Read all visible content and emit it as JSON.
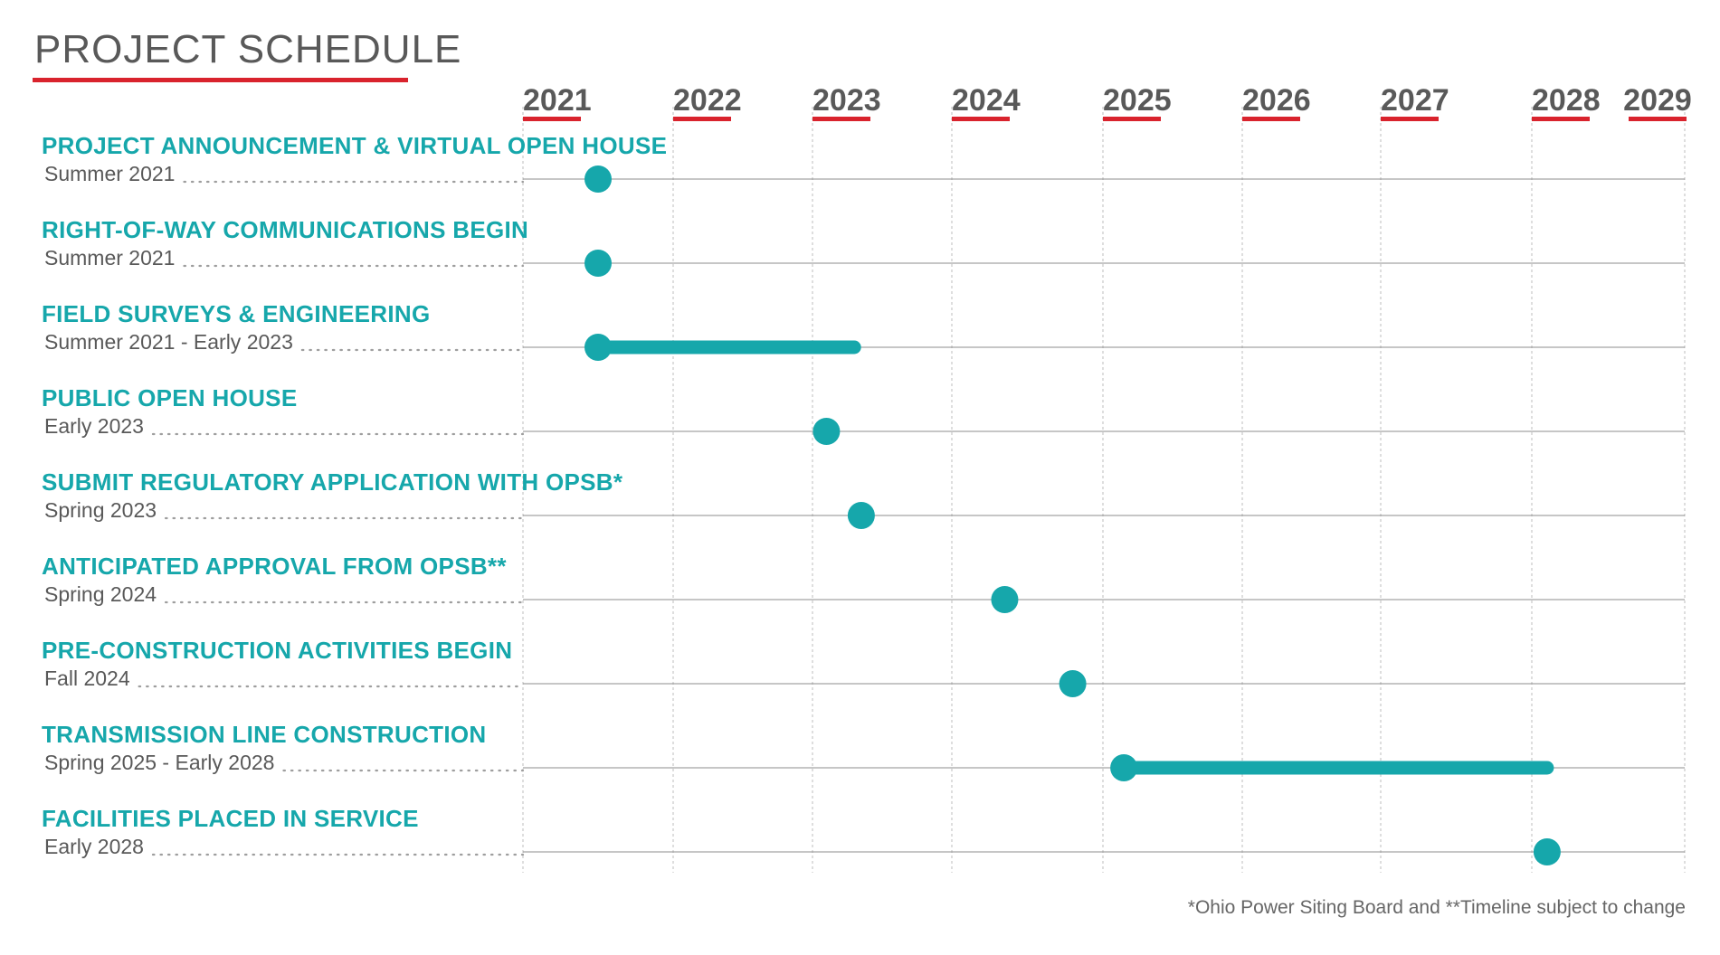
{
  "title": "PROJECT SCHEDULE",
  "footnote": "*Ohio Power Siting Board and  **Timeline subject to change",
  "colors": {
    "accent_red": "#d9232d",
    "teal": "#16a7ab",
    "text_gray": "#595959"
  },
  "chart_data": {
    "type": "gantt",
    "title": "PROJECT SCHEDULE",
    "x_axis": {
      "ticks": [
        "2021",
        "2022",
        "2023",
        "2024",
        "2025",
        "2026",
        "2027",
        "2028",
        "2029"
      ],
      "range": [
        2021,
        2029
      ]
    },
    "tasks": [
      {
        "name": "PROJECT ANNOUNCEMENT & VIRTUAL OPEN HOUSE",
        "date_label": "Summer 2021",
        "start": 2021.5,
        "end": 2021.5
      },
      {
        "name": "RIGHT-OF-WAY COMMUNICATIONS BEGIN",
        "date_label": "Summer 2021",
        "start": 2021.5,
        "end": 2021.5
      },
      {
        "name": "FIELD SURVEYS & ENGINEERING",
        "date_label": "Summer 2021 - Early 2023",
        "start": 2021.5,
        "end": 2023.3
      },
      {
        "name": "PUBLIC OPEN HOUSE",
        "date_label": "Early 2023",
        "start": 2023.1,
        "end": 2023.1
      },
      {
        "name": "SUBMIT REGULATORY APPLICATION WITH OPSB*",
        "date_label": "Spring 2023",
        "start": 2023.35,
        "end": 2023.35
      },
      {
        "name": "ANTICIPATED APPROVAL FROM OPSB**",
        "date_label": "Spring 2024",
        "start": 2024.35,
        "end": 2024.35
      },
      {
        "name": "PRE-CONSTRUCTION ACTIVITIES BEGIN",
        "date_label": "Fall 2024",
        "start": 2024.8,
        "end": 2024.8
      },
      {
        "name": "TRANSMISSION LINE CONSTRUCTION",
        "date_label": "Spring 2025 - Early 2028",
        "start": 2025.15,
        "end": 2028.1
      },
      {
        "name": "FACILITIES PLACED IN SERVICE",
        "date_label": "Early 2028",
        "start": 2028.1,
        "end": 2028.1
      }
    ]
  }
}
